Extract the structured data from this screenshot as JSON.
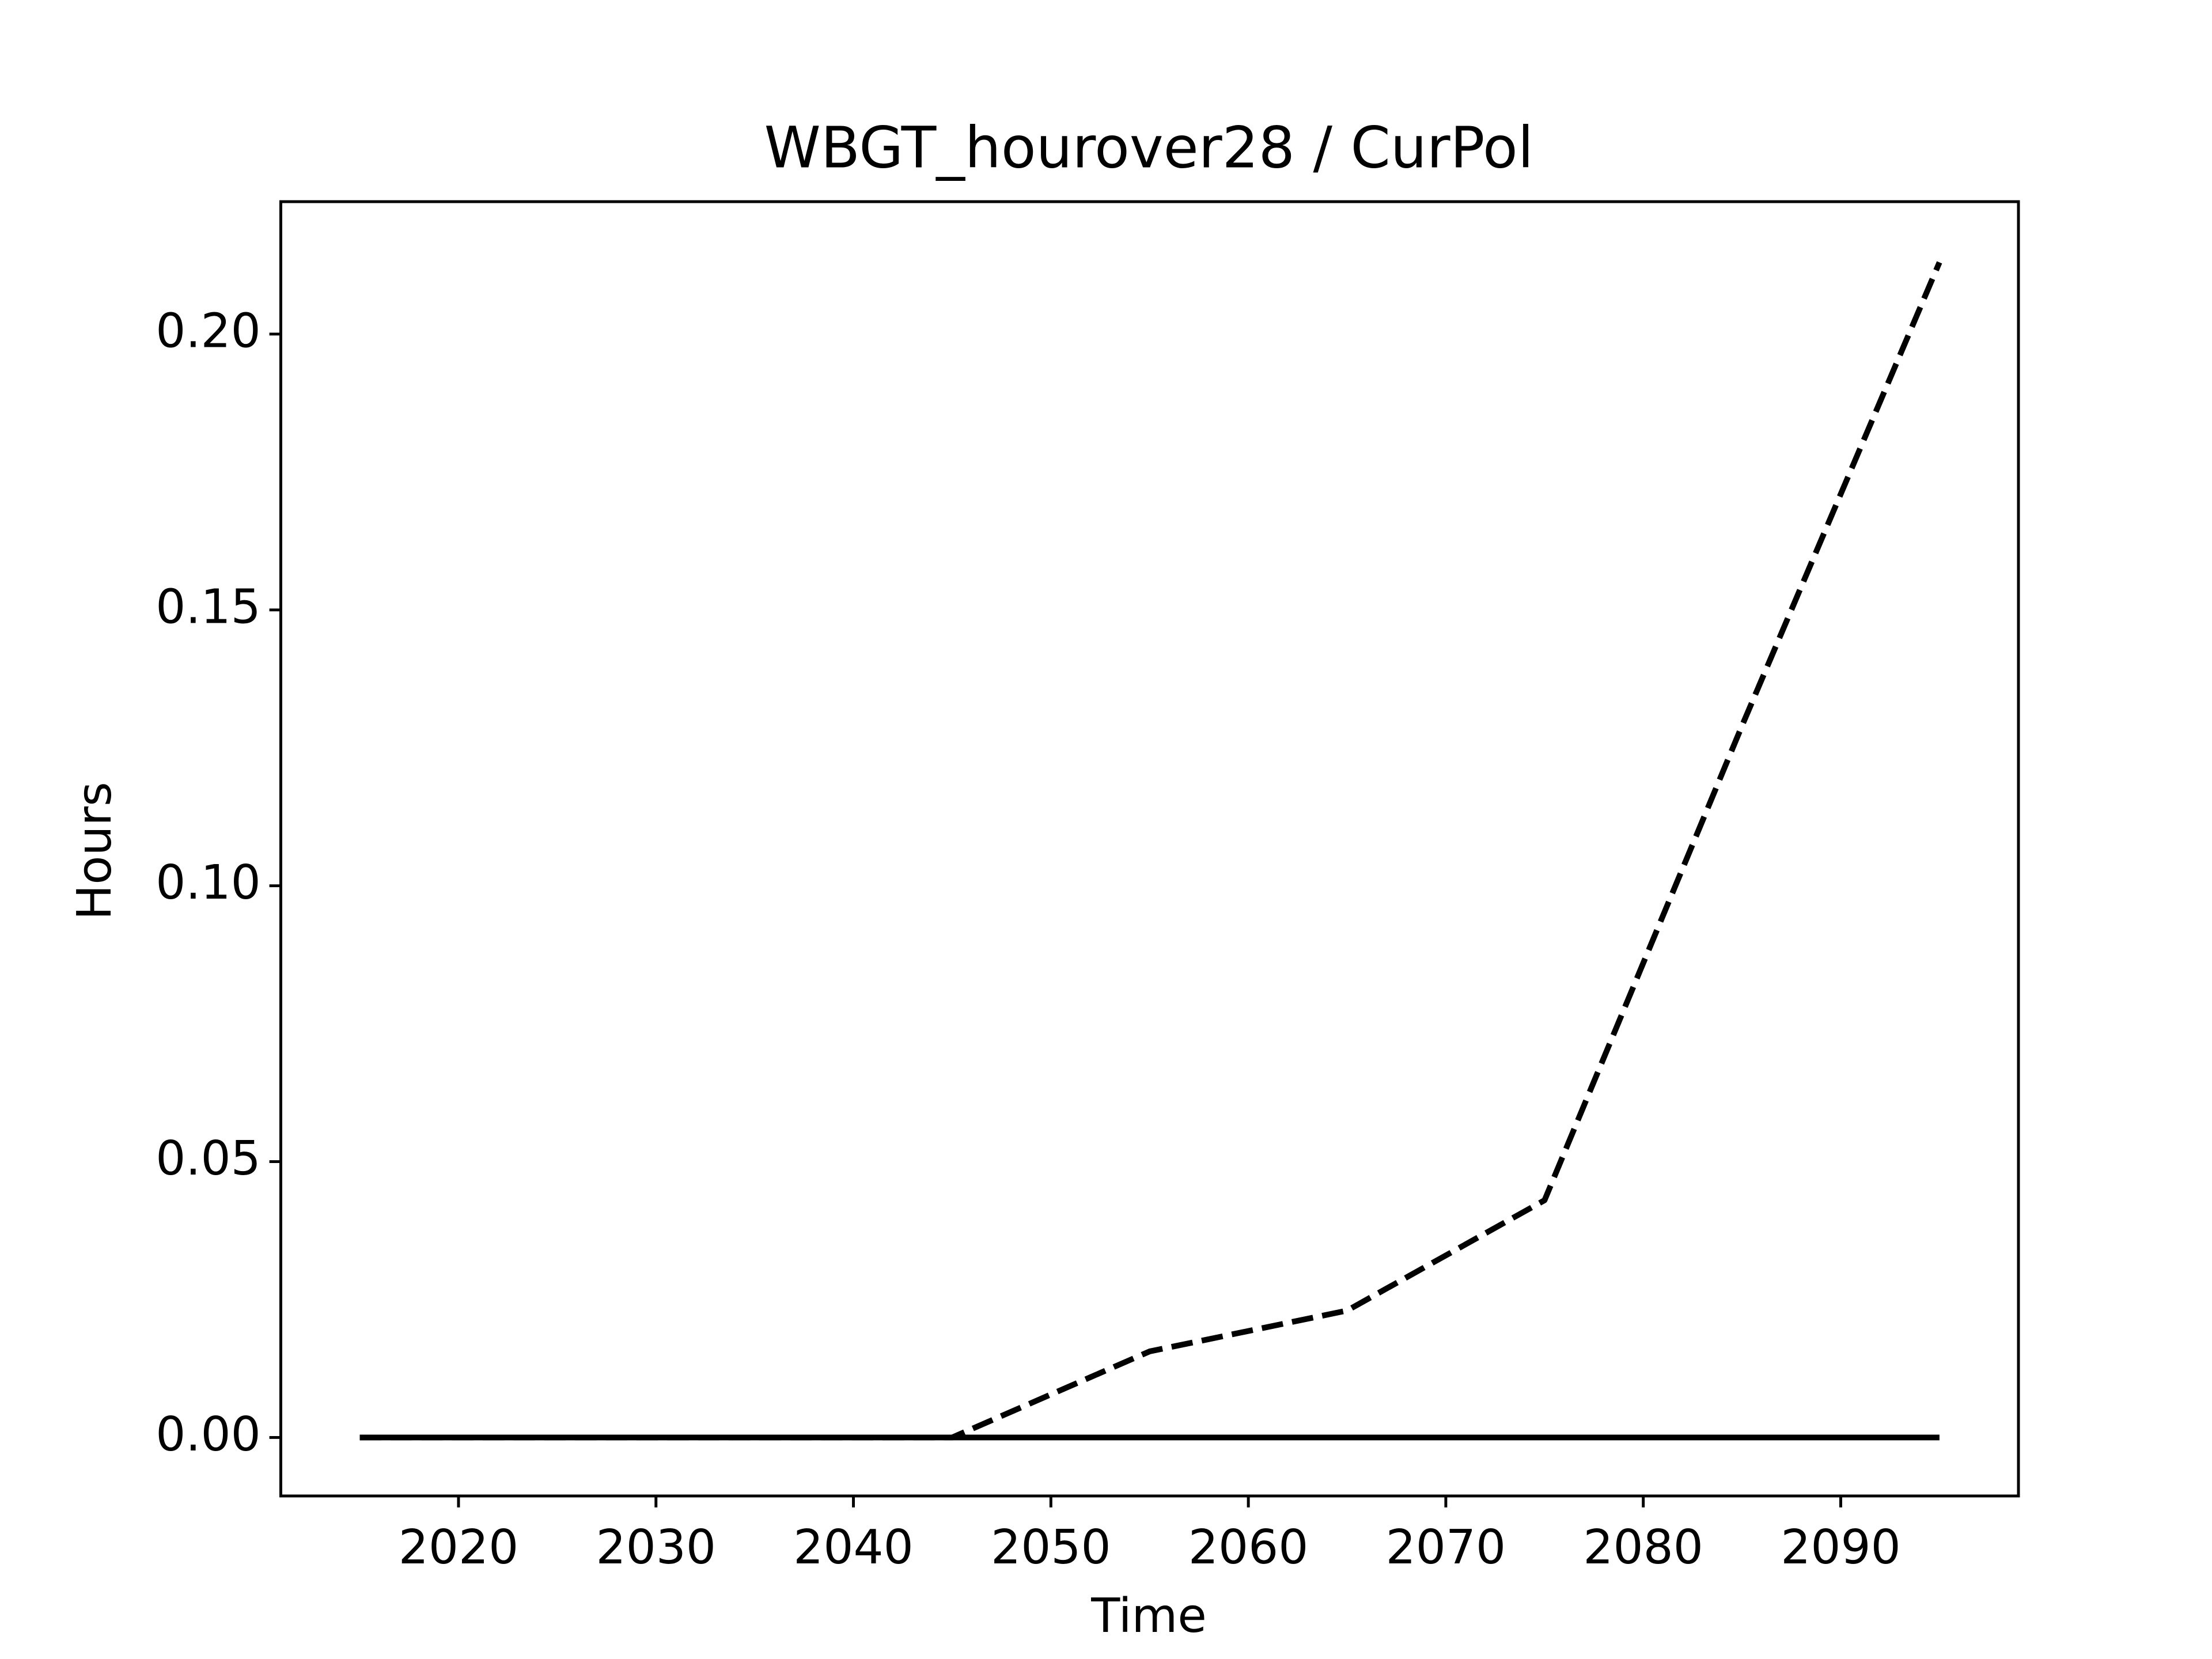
{
  "chart_data": {
    "type": "line",
    "title": "WBGT_hourover28 / CurPol",
    "x_label": "Time",
    "y_label": "Hours",
    "x": [
      2015,
      2025,
      2035,
      2045,
      2055,
      2065,
      2075,
      2085,
      2095
    ],
    "series": [
      {
        "color": "#000000",
        "line_style": "solid",
        "values": [
          0,
          0,
          0,
          0,
          0,
          0,
          0,
          0,
          0
        ]
      },
      {
        "color": "#000000",
        "line_style": "dashed",
        "values": [
          0,
          0,
          0,
          0,
          0.0156,
          0.023,
          0.043,
          0.129,
          0.213
        ]
      }
    ],
    "xlim": [
      2011,
      2099
    ],
    "xticks": [
      2020,
      2030,
      2040,
      2050,
      2060,
      2070,
      2080,
      2090
    ],
    "ylim": [
      -0.0106,
      0.224
    ],
    "yticks": [
      {
        "value": 0,
        "label": "0.00"
      },
      {
        "value": 0.05,
        "label": "0.05"
      },
      {
        "value": 0.1,
        "label": "0.10"
      },
      {
        "value": 0.15,
        "label": "0.15"
      },
      {
        "value": 0.2,
        "label": "0.20"
      }
    ],
    "grid": false
  }
}
